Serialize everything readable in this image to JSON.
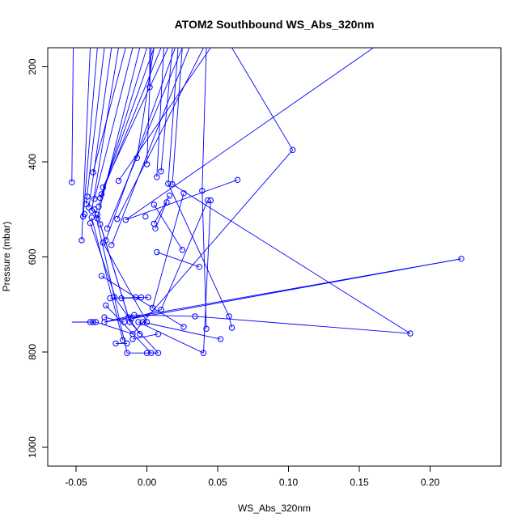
{
  "chart_data": {
    "type": "line",
    "title": "ATOM2 Southbound WS_Abs_320nm",
    "xlabel": "WS_Abs_320nm",
    "ylabel": "Pressure (mbar)",
    "xlim": [
      -0.07,
      0.25
    ],
    "ylim": [
      1040,
      160
    ],
    "y_reversed": true,
    "x_ticks": [
      -0.05,
      0.0,
      0.05,
      0.1,
      0.15,
      0.2
    ],
    "x_tick_labels": [
      "-0.05",
      "0.00",
      "0.05",
      "0.10",
      "0.15",
      "0.20"
    ],
    "y_ticks": [
      200,
      400,
      600,
      800,
      1000
    ],
    "y_tick_labels": [
      "200",
      "400",
      "600",
      "800",
      "1000"
    ],
    "grid": false,
    "legend": "none",
    "series_color": "#0000ff",
    "point_marker": "open-circle",
    "series": [
      {
        "points": [
          [
            -0.053,
            443
          ],
          [
            -0.046,
            565
          ],
          [
            -0.045,
            515
          ],
          [
            -0.044,
            510
          ],
          [
            -0.043,
            489
          ],
          [
            -0.042,
            473
          ],
          [
            -0.041,
            496
          ],
          [
            -0.04,
            529
          ],
          [
            -0.04,
            737
          ],
          [
            -0.039,
            503
          ],
          [
            -0.039,
            517
          ],
          [
            -0.038,
            422
          ],
          [
            -0.038,
            737
          ],
          [
            -0.037,
            478
          ],
          [
            -0.037,
            500
          ],
          [
            -0.036,
            737
          ],
          [
            -0.035,
            511
          ],
          [
            -0.035,
            519
          ],
          [
            -0.034,
            494
          ],
          [
            -0.033,
            476
          ],
          [
            -0.033,
            531
          ],
          [
            -0.032,
            640
          ],
          [
            -0.032,
            468
          ],
          [
            -0.031,
            570
          ],
          [
            -0.031,
            454
          ],
          [
            -0.03,
            727
          ],
          [
            -0.03,
            737
          ],
          [
            -0.029,
            565
          ],
          [
            -0.029,
            702
          ],
          [
            -0.028,
            540
          ],
          [
            -0.026,
            687
          ],
          [
            -0.025,
            575
          ],
          [
            -0.023,
            684
          ],
          [
            -0.022,
            782
          ],
          [
            -0.021,
            520
          ],
          [
            -0.02,
            440
          ],
          [
            -0.018,
            687
          ],
          [
            -0.017,
            775
          ],
          [
            -0.016,
            737
          ],
          [
            -0.015,
            522
          ],
          [
            -0.014,
            782
          ],
          [
            -0.014,
            802
          ],
          [
            -0.013,
            727
          ],
          [
            -0.012,
            737
          ],
          [
            -0.011,
            730
          ],
          [
            -0.01,
            762
          ],
          [
            -0.01,
            773
          ],
          [
            -0.009,
            722
          ],
          [
            -0.008,
            685
          ],
          [
            -0.007,
            392
          ],
          [
            -0.006,
            737
          ],
          [
            -0.005,
            762
          ],
          [
            -0.004,
            685
          ],
          [
            -0.003,
            737
          ],
          [
            -0.001,
            515
          ],
          [
            0.0,
            405
          ],
          [
            0.0,
            737
          ],
          [
            0.0,
            802
          ],
          [
            0.001,
            685
          ],
          [
            0.002,
            243
          ],
          [
            0.003,
            802
          ],
          [
            0.004,
            707
          ],
          [
            0.005,
            490
          ],
          [
            0.005,
            530
          ],
          [
            0.006,
            540
          ],
          [
            0.007,
            432
          ],
          [
            0.007,
            590
          ],
          [
            0.008,
            802
          ],
          [
            0.008,
            762
          ],
          [
            0.01,
            420
          ],
          [
            0.01,
            711
          ],
          [
            0.014,
            485
          ],
          [
            0.015,
            446
          ],
          [
            0.016,
            471
          ],
          [
            0.018,
            447
          ],
          [
            0.025,
            585
          ],
          [
            0.026,
            747
          ],
          [
            0.026,
            466
          ],
          [
            0.034,
            725
          ],
          [
            0.037,
            621
          ],
          [
            0.039,
            461
          ],
          [
            0.04,
            802
          ],
          [
            0.042,
            751
          ],
          [
            0.043,
            481
          ],
          [
            0.045,
            481
          ],
          [
            0.052,
            773
          ],
          [
            0.058,
            725
          ],
          [
            0.06,
            749
          ],
          [
            0.064,
            438
          ],
          [
            0.103,
            375
          ],
          [
            0.186,
            761
          ],
          [
            0.222,
            604
          ]
        ]
      }
    ],
    "segments": [
      [
        -0.053,
        443,
        -0.052,
        160
      ],
      [
        -0.046,
        565,
        -0.04,
        160
      ],
      [
        -0.045,
        515,
        -0.035,
        160
      ],
      [
        -0.043,
        489,
        -0.03,
        160
      ],
      [
        -0.041,
        496,
        -0.025,
        160
      ],
      [
        -0.039,
        503,
        -0.02,
        160
      ],
      [
        -0.038,
        422,
        -0.015,
        160
      ],
      [
        -0.037,
        478,
        -0.01,
        160
      ],
      [
        -0.035,
        519,
        -0.005,
        160
      ],
      [
        -0.034,
        494,
        0.0,
        160
      ],
      [
        -0.033,
        476,
        0.005,
        160
      ],
      [
        -0.032,
        468,
        0.01,
        160
      ],
      [
        -0.031,
        454,
        0.015,
        160
      ],
      [
        -0.029,
        565,
        0.02,
        160
      ],
      [
        -0.028,
        540,
        0.025,
        160
      ],
      [
        -0.025,
        575,
        0.03,
        160
      ],
      [
        -0.021,
        520,
        0.04,
        160
      ],
      [
        -0.02,
        440,
        0.045,
        160
      ],
      [
        -0.015,
        522,
        0.16,
        160
      ],
      [
        -0.007,
        392,
        0.005,
        160
      ],
      [
        0.0,
        405,
        0.003,
        160
      ],
      [
        0.002,
        243,
        0.002,
        160
      ],
      [
        0.007,
        432,
        0.012,
        160
      ],
      [
        0.01,
        420,
        0.018,
        160
      ],
      [
        0.015,
        446,
        0.022,
        160
      ],
      [
        0.018,
        447,
        0.025,
        160
      ],
      [
        0.039,
        461,
        0.042,
        160
      ],
      [
        0.103,
        375,
        0.06,
        160
      ],
      [
        -0.04,
        529,
        -0.022,
        687
      ],
      [
        -0.039,
        517,
        -0.017,
        775
      ],
      [
        -0.037,
        500,
        -0.014,
        802
      ],
      [
        -0.036,
        737,
        -0.01,
        762
      ],
      [
        -0.035,
        511,
        -0.012,
        737
      ],
      [
        -0.033,
        531,
        -0.013,
        727
      ],
      [
        -0.032,
        640,
        -0.008,
        685
      ],
      [
        -0.031,
        570,
        0.0,
        737
      ],
      [
        -0.03,
        727,
        -0.016,
        737
      ],
      [
        -0.03,
        737,
        -0.009,
        722
      ],
      [
        -0.029,
        702,
        0.003,
        802
      ],
      [
        -0.026,
        687,
        -0.004,
        685
      ],
      [
        -0.023,
        684,
        -0.005,
        762
      ],
      [
        -0.022,
        782,
        -0.014,
        782
      ],
      [
        -0.018,
        687,
        0.001,
        685
      ],
      [
        -0.014,
        802,
        0.0,
        802
      ],
      [
        -0.012,
        737,
        0.008,
        802
      ],
      [
        -0.011,
        730,
        0.01,
        711
      ],
      [
        -0.01,
        773,
        0.008,
        762
      ],
      [
        -0.009,
        722,
        0.034,
        725
      ],
      [
        -0.008,
        685,
        0.026,
        747
      ],
      [
        -0.006,
        737,
        0.04,
        802
      ],
      [
        -0.003,
        737,
        0.052,
        773
      ],
      [
        0.0,
        802,
        0.008,
        802
      ],
      [
        0.004,
        707,
        0.026,
        466
      ],
      [
        0.005,
        490,
        0.025,
        585
      ],
      [
        0.005,
        530,
        0.016,
        471
      ],
      [
        0.006,
        540,
        0.014,
        485
      ],
      [
        0.007,
        590,
        0.037,
        621
      ],
      [
        0.01,
        711,
        0.043,
        481
      ],
      [
        0.015,
        446,
        0.058,
        725
      ],
      [
        0.018,
        447,
        0.186,
        761
      ],
      [
        -0.015,
        522,
        0.064,
        438
      ],
      [
        -0.01,
        762,
        0.103,
        375
      ],
      [
        -0.03,
        737,
        0.222,
        604
      ],
      [
        -0.011,
        730,
        0.222,
        604
      ],
      [
        0.034,
        725,
        0.186,
        761
      ],
      [
        0.04,
        802,
        0.045,
        481
      ],
      [
        0.042,
        751,
        0.039,
        461
      ],
      [
        0.06,
        749,
        0.058,
        725
      ],
      [
        -0.04,
        737,
        -0.053,
        737
      ],
      [
        -0.046,
        737,
        -0.036,
        737
      ],
      [
        -0.04,
        737,
        -0.038,
        737
      ]
    ]
  }
}
